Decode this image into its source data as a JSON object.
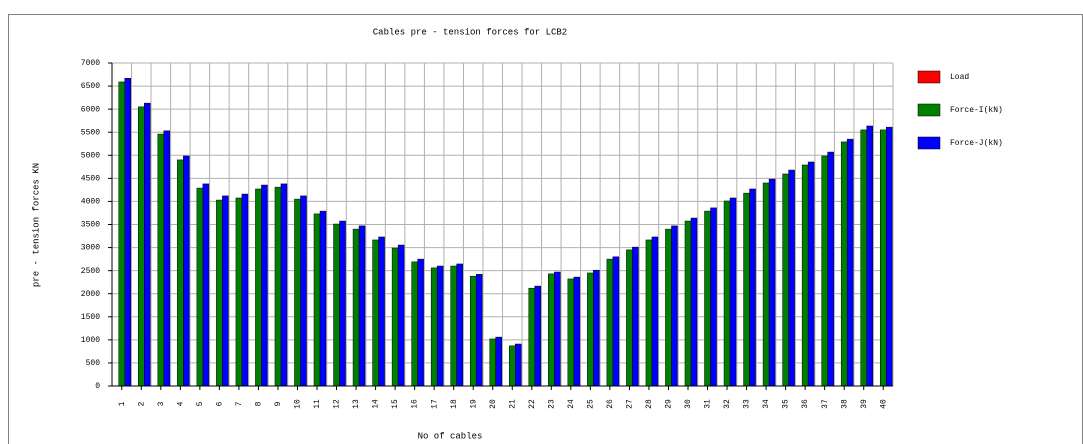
{
  "chart_data": {
    "type": "bar",
    "title": "Cables pre - tension forces for LCB2",
    "x_label": "No of cables",
    "y_label": "pre - tension forces KN",
    "categories": [
      "1",
      "2",
      "3",
      "4",
      "5",
      "6",
      "7",
      "8",
      "9",
      "10",
      "11",
      "12",
      "13",
      "14",
      "15",
      "16",
      "17",
      "18",
      "19",
      "20",
      "21",
      "22",
      "23",
      "24",
      "25",
      "26",
      "27",
      "28",
      "29",
      "30",
      "31",
      "32",
      "33",
      "34",
      "35",
      "36",
      "37",
      "38",
      "39",
      "40"
    ],
    "series": [
      {
        "name": "Load",
        "color": "#ff0000",
        "values": [
          0,
          0,
          0,
          0,
          0,
          0,
          0,
          0,
          0,
          0,
          0,
          0,
          0,
          0,
          0,
          0,
          0,
          0,
          0,
          0,
          0,
          0,
          0,
          0,
          0,
          0,
          0,
          0,
          0,
          0,
          0,
          0,
          0,
          0,
          0,
          0,
          0,
          0,
          0,
          0
        ]
      },
      {
        "name": "Force-I(kN)",
        "color": "#008000",
        "values": [
          6590,
          6050,
          5460,
          4900,
          4290,
          4030,
          4075,
          4270,
          4310,
          4050,
          3730,
          3510,
          3400,
          3165,
          2990,
          2690,
          2560,
          2600,
          2380,
          1020,
          870,
          2120,
          2430,
          2320,
          2450,
          2750,
          2950,
          3165,
          3400,
          3575,
          3790,
          4010,
          4180,
          4400,
          4595,
          4790,
          4985,
          5290,
          5550,
          5550
        ]
      },
      {
        "name": "Force-J(kN)",
        "color": "#0000ff",
        "values": [
          6670,
          6130,
          5530,
          4985,
          4380,
          4120,
          4160,
          4355,
          4380,
          4120,
          3790,
          3575,
          3470,
          3230,
          3055,
          2750,
          2600,
          2645,
          2420,
          1060,
          910,
          2165,
          2470,
          2360,
          2510,
          2800,
          3010,
          3230,
          3470,
          3640,
          3860,
          4075,
          4270,
          4485,
          4680,
          4855,
          5070,
          5350,
          5635,
          5610
        ]
      }
    ],
    "ylim": [
      0,
      7000
    ],
    "yticks": [
      0,
      500,
      1000,
      1500,
      2000,
      2500,
      3000,
      3500,
      4000,
      4500,
      5000,
      5500,
      6000,
      6500,
      7000
    ],
    "grid": true,
    "legend": "right"
  }
}
